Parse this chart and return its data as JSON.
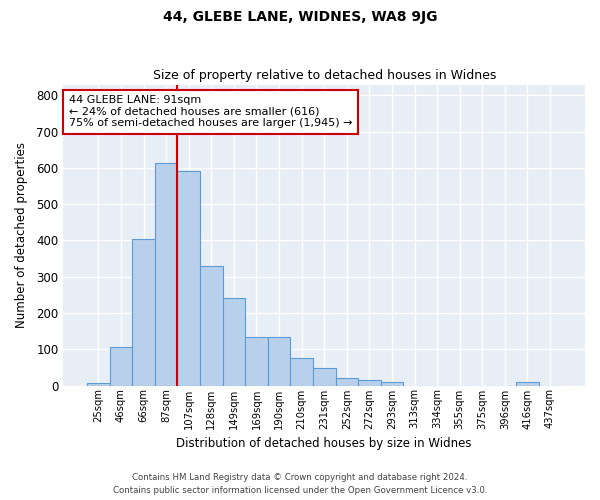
{
  "title1": "44, GLEBE LANE, WIDNES, WA8 9JG",
  "title2": "Size of property relative to detached houses in Widnes",
  "xlabel": "Distribution of detached houses by size in Widnes",
  "ylabel": "Number of detached properties",
  "categories": [
    "25sqm",
    "46sqm",
    "66sqm",
    "87sqm",
    "107sqm",
    "128sqm",
    "149sqm",
    "169sqm",
    "190sqm",
    "210sqm",
    "231sqm",
    "252sqm",
    "272sqm",
    "293sqm",
    "313sqm",
    "334sqm",
    "355sqm",
    "375sqm",
    "396sqm",
    "416sqm",
    "437sqm"
  ],
  "bar_values": [
    8,
    107,
    403,
    613,
    592,
    330,
    242,
    133,
    133,
    76,
    48,
    21,
    15,
    9,
    0,
    0,
    0,
    0,
    0,
    9,
    0
  ],
  "bar_color": "#b8d0eb",
  "bar_edge_color": "#5b9bd5",
  "bg_color": "#e8eef6",
  "grid_color": "#ffffff",
  "vline_x": 3.5,
  "vline_color": "#cc0000",
  "annotation_text": "44 GLEBE LANE: 91sqm\n← 24% of detached houses are smaller (616)\n75% of semi-detached houses are larger (1,945) →",
  "annotation_box_color": "#cc0000",
  "ylim": [
    0,
    830
  ],
  "yticks": [
    0,
    100,
    200,
    300,
    400,
    500,
    600,
    700,
    800
  ],
  "footer1": "Contains HM Land Registry data © Crown copyright and database right 2024.",
  "footer2": "Contains public sector information licensed under the Open Government Licence v3.0."
}
